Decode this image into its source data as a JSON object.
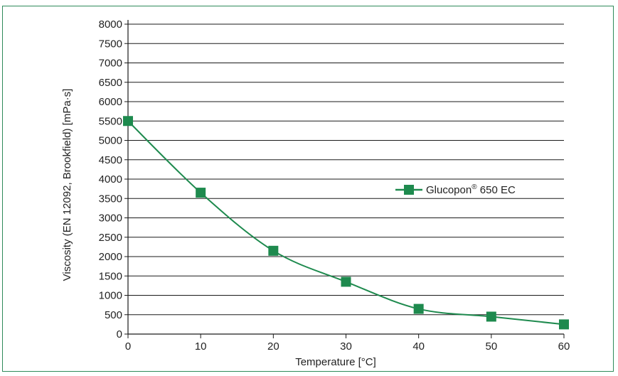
{
  "chart_data": {
    "type": "line",
    "title": "",
    "xlabel": "Temperature [°C]",
    "ylabel": "Viscosity (EN 12092, Brookfield) [mPa·s]",
    "xlim": [
      0,
      60
    ],
    "ylim": [
      0,
      8000
    ],
    "x_ticks": [
      0,
      10,
      20,
      30,
      40,
      50,
      60
    ],
    "y_ticks": [
      0,
      500,
      1000,
      1500,
      2000,
      2500,
      3000,
      3500,
      4000,
      4500,
      5000,
      5500,
      6000,
      6500,
      7000,
      7500,
      8000
    ],
    "grid": "horizontal",
    "legend_position": "right",
    "series": [
      {
        "name": "Glucopon",
        "name_superscript": "®",
        "name_suffix": " 650 EC",
        "color": "#1e8a4e",
        "marker": "square",
        "x": [
          0,
          10,
          20,
          30,
          40,
          50,
          60
        ],
        "y": [
          5500,
          3650,
          2150,
          1350,
          650,
          450,
          250
        ]
      }
    ]
  }
}
